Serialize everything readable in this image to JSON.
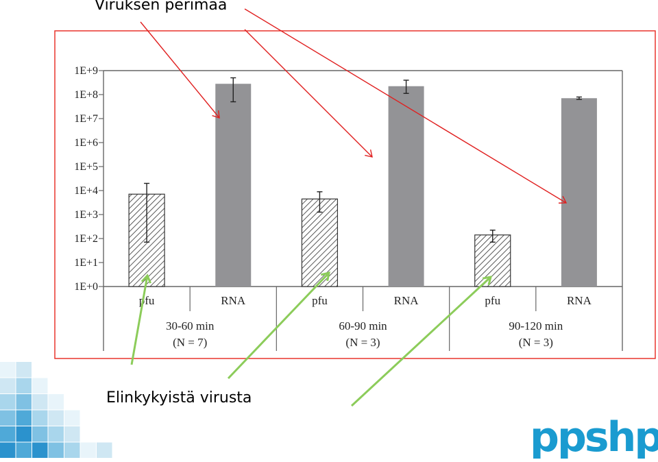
{
  "slide": {
    "top_label": "Viruksen perimää",
    "bottom_label": "Elinkykyistä virusta",
    "logo_text": "ppshp",
    "frame_color": "#e8342c",
    "red_arrow_color": "#e02020",
    "green_arrow_color": "#8ccc5a",
    "logo_color": "#1a9bd0"
  },
  "chart_data": {
    "type": "bar",
    "scale": "log10",
    "ylim": [
      0,
      9
    ],
    "ytick_labels": [
      "1E+0",
      "1E+1",
      "1E+2",
      "1E+3",
      "1E+4",
      "1E+5",
      "1E+6",
      "1E+7",
      "1E+8",
      "1E+9"
    ],
    "groups": [
      {
        "name": "30-60 min",
        "n": "(N = 7)"
      },
      {
        "name": "60-90 min",
        "n": "(N = 3)"
      },
      {
        "name": "90-120 min",
        "n": "(N = 3)"
      }
    ],
    "bars": [
      {
        "label": "pfu",
        "group": 0,
        "style": "hatched",
        "log_value": 3.85,
        "err_low": 1.85,
        "err_high": 4.3
      },
      {
        "label": "RNA",
        "group": 0,
        "style": "solid",
        "log_value": 8.45,
        "err_low": 7.7,
        "err_high": 8.7
      },
      {
        "label": "pfu",
        "group": 1,
        "style": "hatched",
        "log_value": 3.65,
        "err_low": 3.1,
        "err_high": 3.95
      },
      {
        "label": "RNA",
        "group": 1,
        "style": "solid",
        "log_value": 8.35,
        "err_low": 8.05,
        "err_high": 8.6
      },
      {
        "label": "pfu",
        "group": 2,
        "style": "hatched",
        "log_value": 2.15,
        "err_low": 1.85,
        "err_high": 2.35
      },
      {
        "label": "RNA",
        "group": 2,
        "style": "solid",
        "log_value": 7.85,
        "err_low": 7.8,
        "err_high": 7.9
      }
    ]
  }
}
